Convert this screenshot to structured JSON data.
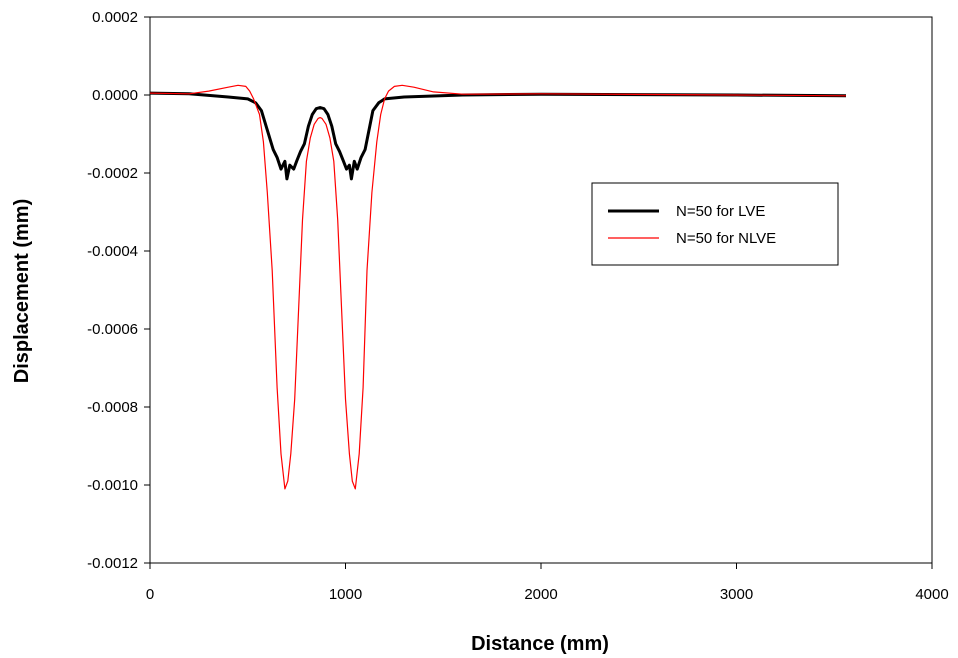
{
  "chart_data": {
    "type": "line",
    "title": "",
    "xlabel": "Distance (mm)",
    "ylabel": "Displacement (mm)",
    "xlim": [
      0,
      4000
    ],
    "ylim": [
      -0.0012,
      0.0002
    ],
    "xticks": [
      0,
      1000,
      2000,
      3000,
      4000
    ],
    "xtick_labels": [
      "0",
      "1000",
      "2000",
      "3000",
      "4000"
    ],
    "yticks": [
      0.0002,
      0.0,
      -0.0002,
      -0.0004,
      -0.0006,
      -0.0008,
      -0.001,
      -0.0012
    ],
    "ytick_labels": [
      "0.0002",
      "0.0000",
      "-0.0002",
      "-0.0004",
      "-0.0006",
      "-0.0008",
      "-0.0010",
      "-0.0012"
    ],
    "grid": false,
    "legend_position": "center-right",
    "series": [
      {
        "name": "N=50 for LVE",
        "color": "#000000",
        "x": [
          0,
          200,
          400,
          500,
          540,
          570,
          600,
          630,
          650,
          670,
          690,
          700,
          715,
          735,
          750,
          770,
          790,
          810,
          830,
          850,
          870,
          890,
          910,
          930,
          950,
          970,
          990,
          1005,
          1020,
          1030,
          1045,
          1060,
          1080,
          1100,
          1120,
          1140,
          1170,
          1200,
          1300,
          1600,
          2000,
          3000,
          3560
        ],
        "y": [
          5e-06,
          3e-06,
          -5e-06,
          -1e-05,
          -2e-05,
          -4e-05,
          -9e-05,
          -0.00014,
          -0.00016,
          -0.00019,
          -0.00017,
          -0.000215,
          -0.00018,
          -0.00019,
          -0.00017,
          -0.000145,
          -0.000125,
          -8e-05,
          -5e-05,
          -3.5e-05,
          -3.2e-05,
          -3.5e-05,
          -5e-05,
          -8e-05,
          -0.000125,
          -0.000145,
          -0.00017,
          -0.00019,
          -0.00018,
          -0.000215,
          -0.00017,
          -0.00019,
          -0.00016,
          -0.00014,
          -9e-05,
          -4e-05,
          -2e-05,
          -1e-05,
          -5e-06,
          0.0,
          2e-06,
          0.0,
          -2e-06
        ]
      },
      {
        "name": "N=50 for NLVE",
        "color": "#ff0000",
        "x": [
          0,
          200,
          300,
          400,
          450,
          490,
          510,
          530,
          560,
          580,
          600,
          625,
          650,
          670,
          690,
          705,
          720,
          740,
          760,
          780,
          800,
          820,
          840,
          860,
          870,
          880,
          900,
          920,
          940,
          960,
          980,
          1000,
          1020,
          1035,
          1050,
          1070,
          1090,
          1110,
          1135,
          1160,
          1180,
          1200,
          1220,
          1250,
          1290,
          1350,
          1450,
          1600,
          2000,
          3000,
          3560
        ],
        "y": [
          5e-06,
          3e-06,
          1e-05,
          2e-05,
          2.5e-05,
          2.2e-05,
          1e-05,
          -1e-05,
          -5e-05,
          -0.00012,
          -0.00025,
          -0.00045,
          -0.00075,
          -0.00092,
          -0.00101,
          -0.00099,
          -0.00092,
          -0.00078,
          -0.00055,
          -0.00032,
          -0.00017,
          -0.00011,
          -7.5e-05,
          -6e-05,
          -5.8e-05,
          -6e-05,
          -7.5e-05,
          -0.00011,
          -0.00017,
          -0.00032,
          -0.00055,
          -0.00078,
          -0.00092,
          -0.00099,
          -0.00101,
          -0.00092,
          -0.00075,
          -0.00045,
          -0.00025,
          -0.00012,
          -5e-05,
          -1e-05,
          1e-05,
          2.2e-05,
          2.5e-05,
          2e-05,
          8e-06,
          2e-06,
          3e-06,
          0.0,
          -2e-06
        ]
      }
    ]
  }
}
